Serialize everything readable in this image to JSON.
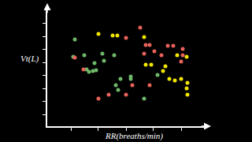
{
  "chart_data": {
    "type": "scatter",
    "x_label": "RR(breaths/min)",
    "y_label": "Vt(L)",
    "xlim": [
      0,
      100
    ],
    "ylim": [
      0,
      100
    ],
    "xticks": [
      15,
      32,
      50,
      67,
      85
    ],
    "yticks": [
      10,
      21,
      32,
      43,
      54,
      65,
      76,
      87
    ],
    "tick_labels": false,
    "grid": false,
    "marker": "circle",
    "series": [
      {
        "color": "#6fb86a",
        "x": [
          17.5,
          16.5,
          23.5,
          25,
          29,
          26.5,
          31,
          30,
          35,
          36,
          42.5,
          43.5,
          46.5,
          53,
          53,
          45,
          61.5,
          70
        ],
        "values": [
          73.3,
          58.7,
          60,
          48,
          46.7,
          46,
          47.3,
          53.3,
          61.3,
          55.3,
          60,
          34.7,
          40,
          42,
          40,
          30.7,
          23.3,
          43.3
        ]
      },
      {
        "color": "#f2e600",
        "x": [
          32.5,
          41.5,
          44.5,
          61.5,
          62.5,
          66,
          82.5,
          88.5,
          73.5,
          77.5,
          81,
          85,
          89,
          88.5,
          89,
          75
        ],
        "values": [
          78,
          76.7,
          76.7,
          75.3,
          52,
          52,
          60,
          58.7,
          46.7,
          40,
          38.7,
          40,
          36.7,
          32,
          26.7,
          50.7
        ]
      },
      {
        "color": "#e8625a",
        "x": [
          17.5,
          23,
          50,
          59,
          62.5,
          65,
          61.5,
          68,
          76.5,
          80,
          86,
          86,
          85,
          72.5,
          32.5,
          39,
          50,
          54,
          65
        ],
        "values": [
          58,
          48,
          74.7,
          83.3,
          68.7,
          68.7,
          61.3,
          63.3,
          68,
          68,
          65.3,
          60,
          54.7,
          60,
          23.3,
          26.7,
          26.7,
          34.7,
          34.7
        ]
      }
    ]
  }
}
